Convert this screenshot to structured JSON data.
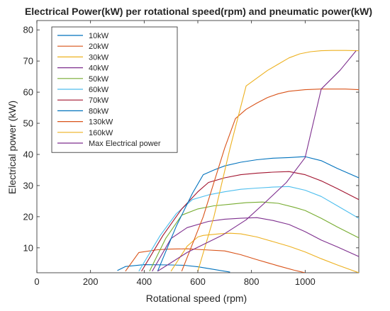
{
  "chart_data": {
    "type": "line",
    "title": "Electrical Power(kW) per rotational speed(rpm) and pneumatic power(kW)",
    "xlabel": "Rotational speed (rpm)",
    "ylabel": "Electrical power (kW)",
    "xlim": [
      0,
      1200
    ],
    "ylim": [
      2,
      83
    ],
    "xticks": [
      0,
      200,
      400,
      600,
      800,
      1000
    ],
    "xtick_labels": [
      "0",
      "200",
      "400",
      "600",
      "800",
      "1000"
    ],
    "yticks": [
      10,
      20,
      30,
      40,
      50,
      60,
      70,
      80
    ],
    "ytick_labels": [
      "10",
      "20",
      "30",
      "40",
      "50",
      "60",
      "70",
      "80"
    ],
    "grid": false,
    "legend_position": "top-left",
    "series": [
      {
        "name": "10kW",
        "color": "#0072BD",
        "x": [
          300,
          330,
          400,
          500,
          550,
          600,
          650,
          720
        ],
        "y": [
          2.7,
          4.0,
          4.6,
          4.5,
          4.4,
          3.9,
          3.2,
          2.2
        ]
      },
      {
        "name": "20kW",
        "color": "#D95319",
        "x": [
          330,
          380,
          450,
          500,
          560,
          620,
          700,
          760,
          820,
          900,
          960,
          1000
        ],
        "y": [
          2.5,
          8.5,
          9.4,
          9.6,
          9.7,
          9.4,
          9.0,
          7.8,
          6.2,
          4.2,
          2.8,
          2.0
        ]
      },
      {
        "name": "30kW",
        "color": "#EDB120",
        "x": [
          500,
          560,
          600,
          620,
          680,
          720,
          760,
          820,
          880,
          940,
          1000,
          1060,
          1120,
          1200
        ],
        "y": [
          2.5,
          10.5,
          13.5,
          14.0,
          14.5,
          14.7,
          14.5,
          13.5,
          12.0,
          10.5,
          8.7,
          6.5,
          4.5,
          2.0
        ]
      },
      {
        "name": "40kW",
        "color": "#7E2F8E",
        "x": [
          430,
          500,
          560,
          640,
          700,
          760,
          820,
          880,
          940,
          1000,
          1060,
          1120,
          1200
        ],
        "y": [
          2.5,
          13.0,
          16.5,
          18.5,
          19.2,
          19.5,
          19.7,
          18.8,
          17.5,
          15.2,
          12.5,
          10.3,
          7.2
        ]
      },
      {
        "name": "50kW",
        "color": "#77AC30",
        "x": [
          420,
          480,
          540,
          600,
          660,
          720,
          780,
          840,
          900,
          960,
          1000,
          1060,
          1120,
          1200
        ],
        "y": [
          2.5,
          13.0,
          20.5,
          22.5,
          23.5,
          24.0,
          24.5,
          24.7,
          24.3,
          23.0,
          22.0,
          19.5,
          16.7,
          13.2
        ]
      },
      {
        "name": "60kW",
        "color": "#4DBEEE",
        "x": [
          380,
          460,
          520,
          580,
          640,
          700,
          760,
          820,
          880,
          940,
          1000,
          1060,
          1120,
          1200
        ],
        "y": [
          2.5,
          14.0,
          21.0,
          25.5,
          27.0,
          28.0,
          28.8,
          29.2,
          29.5,
          29.7,
          28.5,
          26.5,
          23.5,
          19.5
        ]
      },
      {
        "name": "70kW",
        "color": "#A2142F",
        "x": [
          390,
          470,
          540,
          600,
          640,
          700,
          760,
          820,
          880,
          940,
          1000,
          1060,
          1120,
          1200
        ],
        "y": [
          2.5,
          14.0,
          22.5,
          28.0,
          31.0,
          32.5,
          33.5,
          34.0,
          34.3,
          34.5,
          33.5,
          31.5,
          29.0,
          25.5
        ]
      },
      {
        "name": "80kW",
        "color": "#0072BD",
        "x": [
          450,
          520,
          580,
          620,
          660,
          700,
          760,
          820,
          880,
          940,
          1000,
          1060,
          1120,
          1200
        ],
        "y": [
          2.5,
          17.0,
          27.5,
          33.5,
          35.0,
          36.3,
          37.5,
          38.3,
          38.8,
          39.0,
          39.3,
          38.0,
          35.5,
          32.5
        ]
      },
      {
        "name": "130kW",
        "color": "#D95319",
        "x": [
          540,
          620,
          700,
          740,
          780,
          820,
          860,
          900,
          940,
          1000,
          1060,
          1100,
          1150,
          1200
        ],
        "y": [
          2.5,
          20.0,
          42.0,
          51.5,
          54.5,
          56.5,
          58.3,
          59.5,
          60.3,
          60.8,
          61.0,
          61.0,
          61.0,
          60.8
        ]
      },
      {
        "name": "160kW",
        "color": "#EDB120",
        "x": [
          600,
          660,
          720,
          780,
          820,
          860,
          900,
          940,
          980,
          1020,
          1060,
          1100,
          1150,
          1200
        ],
        "y": [
          2.5,
          20.0,
          42.0,
          62.0,
          64.5,
          67.0,
          69.0,
          71.0,
          72.3,
          73.0,
          73.3,
          73.4,
          73.4,
          73.3
        ]
      },
      {
        "name": "Max Electrical power",
        "color": "#7E2F8E",
        "x": [
          450,
          560,
          690,
          780,
          850,
          930,
          1000,
          1060,
          1130,
          1190
        ],
        "y": [
          2.5,
          8.5,
          14.0,
          19.0,
          24.5,
          31.0,
          39.0,
          61.0,
          67.0,
          73.3
        ]
      }
    ]
  }
}
